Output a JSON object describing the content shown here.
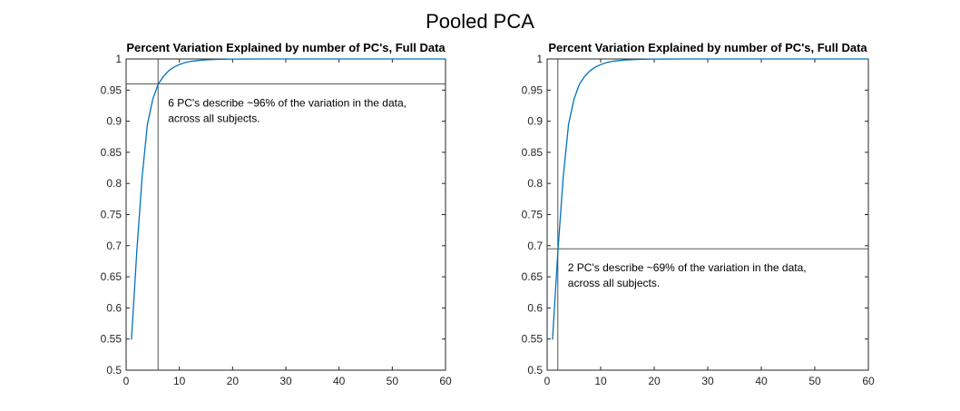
{
  "figure": {
    "title": "Pooled PCA"
  },
  "chart_data": [
    {
      "type": "line",
      "title": "Percent Variation Explained by number of PC's, Full Data",
      "xlabel": "",
      "ylabel": "",
      "xlim": [
        0,
        60
      ],
      "ylim": [
        0.5,
        1
      ],
      "xticks": [
        0,
        10,
        20,
        30,
        40,
        50,
        60
      ],
      "yticks": [
        0.5,
        0.55,
        0.6,
        0.65,
        0.7,
        0.75,
        0.8,
        0.85,
        0.9,
        0.95,
        1
      ],
      "ytick_labels": [
        "0.5",
        "0.55",
        "0.6",
        "0.65",
        "0.7",
        "0.75",
        "0.8",
        "0.85",
        "0.9",
        "0.95",
        "1"
      ],
      "grid": false,
      "series": [
        {
          "color": "#0072BD",
          "x": [
            1,
            2,
            3,
            4,
            5,
            6,
            7,
            8,
            9,
            10,
            11,
            12,
            13,
            14,
            15,
            16,
            17,
            18,
            19,
            20,
            22,
            25,
            30,
            35,
            40,
            45,
            50,
            55,
            60
          ],
          "y": [
            0.549,
            0.69,
            0.81,
            0.895,
            0.935,
            0.959,
            0.972,
            0.981,
            0.987,
            0.991,
            0.994,
            0.996,
            0.997,
            0.998,
            0.9985,
            0.999,
            0.9993,
            0.9995,
            0.9997,
            0.9998,
            0.9999,
            1,
            1,
            1,
            1,
            1,
            1,
            1,
            1
          ]
        }
      ],
      "reference_lines": {
        "x": 6,
        "y": 0.96
      },
      "annotation": {
        "line1": "6 PC's describe ~96% of the variation in the data,",
        "line2": "across all subjects."
      }
    },
    {
      "type": "line",
      "title": "Percent Variation Explained by number of PC's, Full Data",
      "xlabel": "",
      "ylabel": "",
      "xlim": [
        0,
        60
      ],
      "ylim": [
        0.5,
        1
      ],
      "xticks": [
        0,
        10,
        20,
        30,
        40,
        50,
        60
      ],
      "yticks": [
        0.5,
        0.55,
        0.6,
        0.65,
        0.7,
        0.75,
        0.8,
        0.85,
        0.9,
        0.95,
        1
      ],
      "ytick_labels": [
        "0.5",
        "0.55",
        "0.6",
        "0.65",
        "0.7",
        "0.75",
        "0.8",
        "0.85",
        "0.9",
        "0.95",
        "1"
      ],
      "grid": false,
      "series": [
        {
          "color": "#0072BD",
          "x": [
            1,
            2,
            3,
            4,
            5,
            6,
            7,
            8,
            9,
            10,
            11,
            12,
            13,
            14,
            15,
            16,
            17,
            18,
            19,
            20,
            22,
            25,
            30,
            35,
            40,
            45,
            50,
            55,
            60
          ],
          "y": [
            0.549,
            0.69,
            0.81,
            0.895,
            0.935,
            0.959,
            0.972,
            0.981,
            0.987,
            0.991,
            0.994,
            0.996,
            0.997,
            0.998,
            0.9985,
            0.999,
            0.9993,
            0.9995,
            0.9997,
            0.9998,
            0.9999,
            1,
            1,
            1,
            1,
            1,
            1,
            1,
            1
          ]
        }
      ],
      "reference_lines": {
        "x": 2,
        "y": 0.695
      },
      "annotation": {
        "line1": "2 PC's describe ~69% of the variation in the data,",
        "line2": "across all subjects."
      }
    }
  ]
}
